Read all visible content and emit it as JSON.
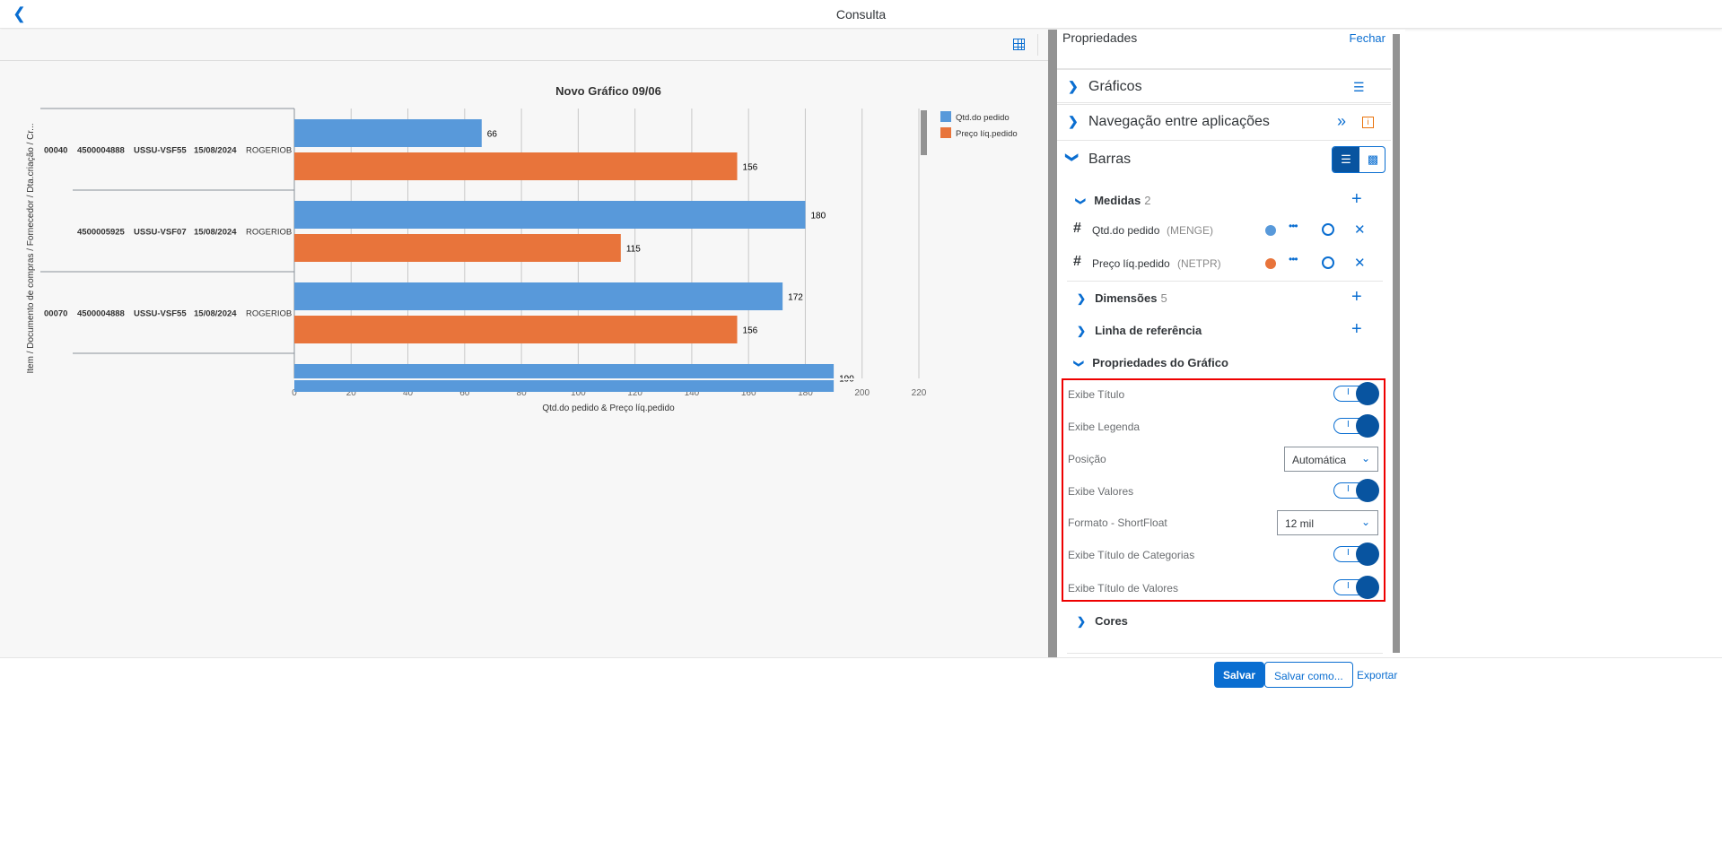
{
  "header": {
    "title": "Consulta",
    "back_icon": "chevron-left"
  },
  "panel": {
    "title": "Propriedades",
    "close": "Fechar",
    "sections": {
      "graficos": "Gráficos",
      "navegacao": "Navegação entre aplicações",
      "barras": "Barras"
    },
    "medidas": {
      "label": "Medidas",
      "count": "2",
      "items": [
        {
          "name": "Qtd.do pedido",
          "tech": "(MENGE)",
          "color": "#5899da"
        },
        {
          "name": "Preço líq.pedido",
          "tech": "(NETPR)",
          "color": "#e8743b"
        }
      ]
    },
    "dimensoes": {
      "label": "Dimensões",
      "count": "5"
    },
    "linha_ref": "Linha de referência",
    "prop_grafico": "Propriedades do Gráfico",
    "props": {
      "exibe_titulo": {
        "label": "Exibe Título",
        "on": true
      },
      "exibe_legenda": {
        "label": "Exibe Legenda",
        "on": true
      },
      "posicao": {
        "label": "Posição",
        "value": "Automática"
      },
      "exibe_valores": {
        "label": "Exibe Valores",
        "on": true
      },
      "formato": {
        "label": "Formato - ShortFloat",
        "value": "12 mil"
      },
      "exibe_titulo_cat": {
        "label": "Exibe Título de Categorias",
        "on": true
      },
      "exibe_titulo_val": {
        "label": "Exibe Título de Valores",
        "on": true
      },
      "toggle_text": "I"
    },
    "cores": "Cores"
  },
  "footer": {
    "save": "Salvar",
    "save_as": "Salvar como...",
    "export": "Exportar"
  },
  "chart_data": {
    "type": "bar",
    "orientation": "horizontal",
    "title": "Novo Gráfico 09/06",
    "ylabel": "Item / Documento de compras / Fornecedor / Dta.criação / Cr...",
    "xlabel": "Qtd.do pedido & Preço líq.pedido",
    "xlim": [
      0,
      220
    ],
    "ticks": [
      0,
      20,
      40,
      60,
      80,
      100,
      120,
      140,
      160,
      180,
      200,
      220
    ],
    "categories": [
      [
        "00040",
        "4500004888",
        "USSU-VSF55",
        "15/08/2024",
        "ROGERIOB"
      ],
      [
        "",
        "4500005925",
        "USSU-VSF07",
        "15/08/2024",
        "ROGERIOB"
      ],
      [
        "00070",
        "4500004888",
        "USSU-VSF55",
        "15/08/2024",
        "ROGERIOB"
      ],
      [
        "",
        "",
        "",
        "",
        ""
      ]
    ],
    "series": [
      {
        "name": "Qtd.do pedido",
        "color": "#5899da",
        "values": [
          66,
          180,
          172,
          190
        ]
      },
      {
        "name": "Preço líq.pedido",
        "color": "#e8743b",
        "values": [
          156,
          115,
          156,
          null
        ]
      }
    ],
    "legend": "top-right",
    "grid": true
  }
}
